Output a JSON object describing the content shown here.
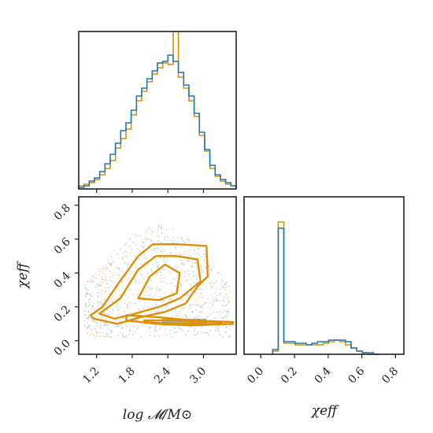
{
  "colors": {
    "blue": "#1f77b4",
    "orange": "#de8f05",
    "frame": "#222222",
    "blue_light": "#7fb3d8",
    "orange_light": "#f0b46a"
  },
  "chart_data": [
    {
      "type": "histogram",
      "panel": "top-left",
      "variable": "log M/M_sun",
      "xlim": [
        0.9,
        3.55
      ],
      "bin_edges_start": 0.9,
      "bin_width": 0.0883,
      "series": [
        {
          "color": "blue",
          "values": [
            0.01,
            0.02,
            0.05,
            0.07,
            0.11,
            0.16,
            0.22,
            0.29,
            0.37,
            0.42,
            0.5,
            0.59,
            0.64,
            0.7,
            0.75,
            0.8,
            0.81,
            0.85,
            0.81,
            0.74,
            0.66,
            0.59,
            0.48,
            0.36,
            0.25,
            0.15,
            0.09,
            0.06,
            0.04,
            0.02
          ]
        },
        {
          "color": "orange",
          "values": [
            0.02,
            0.03,
            0.04,
            0.06,
            0.09,
            0.13,
            0.18,
            0.26,
            0.32,
            0.38,
            0.47,
            0.56,
            0.62,
            0.68,
            0.73,
            0.77,
            0.8,
            0.79,
            1.0,
            0.71,
            0.64,
            0.56,
            0.46,
            0.34,
            0.24,
            0.13,
            0.08,
            0.05,
            0.03,
            0.02
          ]
        }
      ]
    },
    {
      "type": "scatter+contour",
      "panel": "bottom-left",
      "xlabel": "log 𝓜/M⊙",
      "ylabel": "χeff",
      "xlim": [
        0.9,
        3.55
      ],
      "ylim": [
        -0.08,
        0.85
      ],
      "xticks": [
        "1.2",
        "1.8",
        "2.4",
        "3.0"
      ],
      "yticks": [
        "0.0",
        "0.2",
        "0.4",
        "0.6",
        "0.8"
      ],
      "contours": [
        {
          "color": "orange",
          "points": [
            [
              1.1,
              0.15
            ],
            [
              1.3,
              0.2
            ],
            [
              1.55,
              0.33
            ],
            [
              1.9,
              0.5
            ],
            [
              2.15,
              0.57
            ],
            [
              2.55,
              0.57
            ],
            [
              3.05,
              0.56
            ],
            [
              3.07,
              0.38
            ],
            [
              2.9,
              0.32
            ],
            [
              2.7,
              0.22
            ],
            [
              2.35,
              0.17
            ],
            [
              1.95,
              0.14
            ],
            [
              1.55,
              0.1
            ],
            [
              1.15,
              0.13
            ]
          ]
        },
        {
          "color": "orange",
          "points": [
            [
              1.25,
              0.16
            ],
            [
              1.6,
              0.25
            ],
            [
              1.9,
              0.42
            ],
            [
              2.2,
              0.5
            ],
            [
              2.55,
              0.5
            ],
            [
              2.9,
              0.48
            ],
            [
              2.95,
              0.35
            ],
            [
              2.6,
              0.25
            ],
            [
              2.25,
              0.2
            ],
            [
              1.85,
              0.16
            ],
            [
              1.5,
              0.13
            ]
          ]
        },
        {
          "color": "orange",
          "points": [
            [
              1.9,
              0.25
            ],
            [
              2.1,
              0.38
            ],
            [
              2.35,
              0.45
            ],
            [
              2.6,
              0.4
            ],
            [
              2.55,
              0.28
            ],
            [
              2.25,
              0.24
            ]
          ]
        },
        {
          "color": "orange",
          "points": [
            [
              1.7,
              0.15
            ],
            [
              2.2,
              0.14
            ],
            [
              2.8,
              0.12
            ],
            [
              3.5,
              0.11
            ],
            [
              3.5,
              0.1
            ],
            [
              2.8,
              0.09
            ],
            [
              2.2,
              0.1
            ],
            [
              1.7,
              0.12
            ]
          ]
        },
        {
          "color": "orange",
          "points": [
            [
              2.0,
              0.12
            ],
            [
              2.5,
              0.12
            ],
            [
              3.3,
              0.11
            ],
            [
              3.3,
              0.1
            ],
            [
              2.5,
              0.1
            ],
            [
              2.0,
              0.11
            ]
          ]
        }
      ],
      "hotspot": {
        "x": [
          2.3,
          3.05
        ],
        "y": [
          0.09,
          0.13
        ]
      }
    },
    {
      "type": "histogram",
      "panel": "bottom-right",
      "variable": "χeff",
      "xlabel": "χeff",
      "xlim": [
        -0.1,
        0.85
      ],
      "xticks": [
        "0.0",
        "0.2",
        "0.4",
        "0.6",
        "0.8"
      ],
      "bin_edges_start": 0.07,
      "bin_width": 0.0333,
      "series": [
        {
          "color": "blue",
          "values": [
            0.03,
            0.8,
            0.08,
            0.08,
            0.07,
            0.07,
            0.06,
            0.07,
            0.08,
            0.08,
            0.09,
            0.09,
            0.09,
            0.08,
            0.04,
            0.02,
            0.01,
            0.01,
            0.0
          ]
        },
        {
          "color": "orange",
          "values": [
            0.02,
            0.84,
            0.07,
            0.07,
            0.06,
            0.06,
            0.06,
            0.06,
            0.06,
            0.07,
            0.08,
            0.09,
            0.08,
            0.06,
            0.04,
            0.02,
            0.01,
            0.0,
            0.0
          ]
        }
      ]
    }
  ]
}
